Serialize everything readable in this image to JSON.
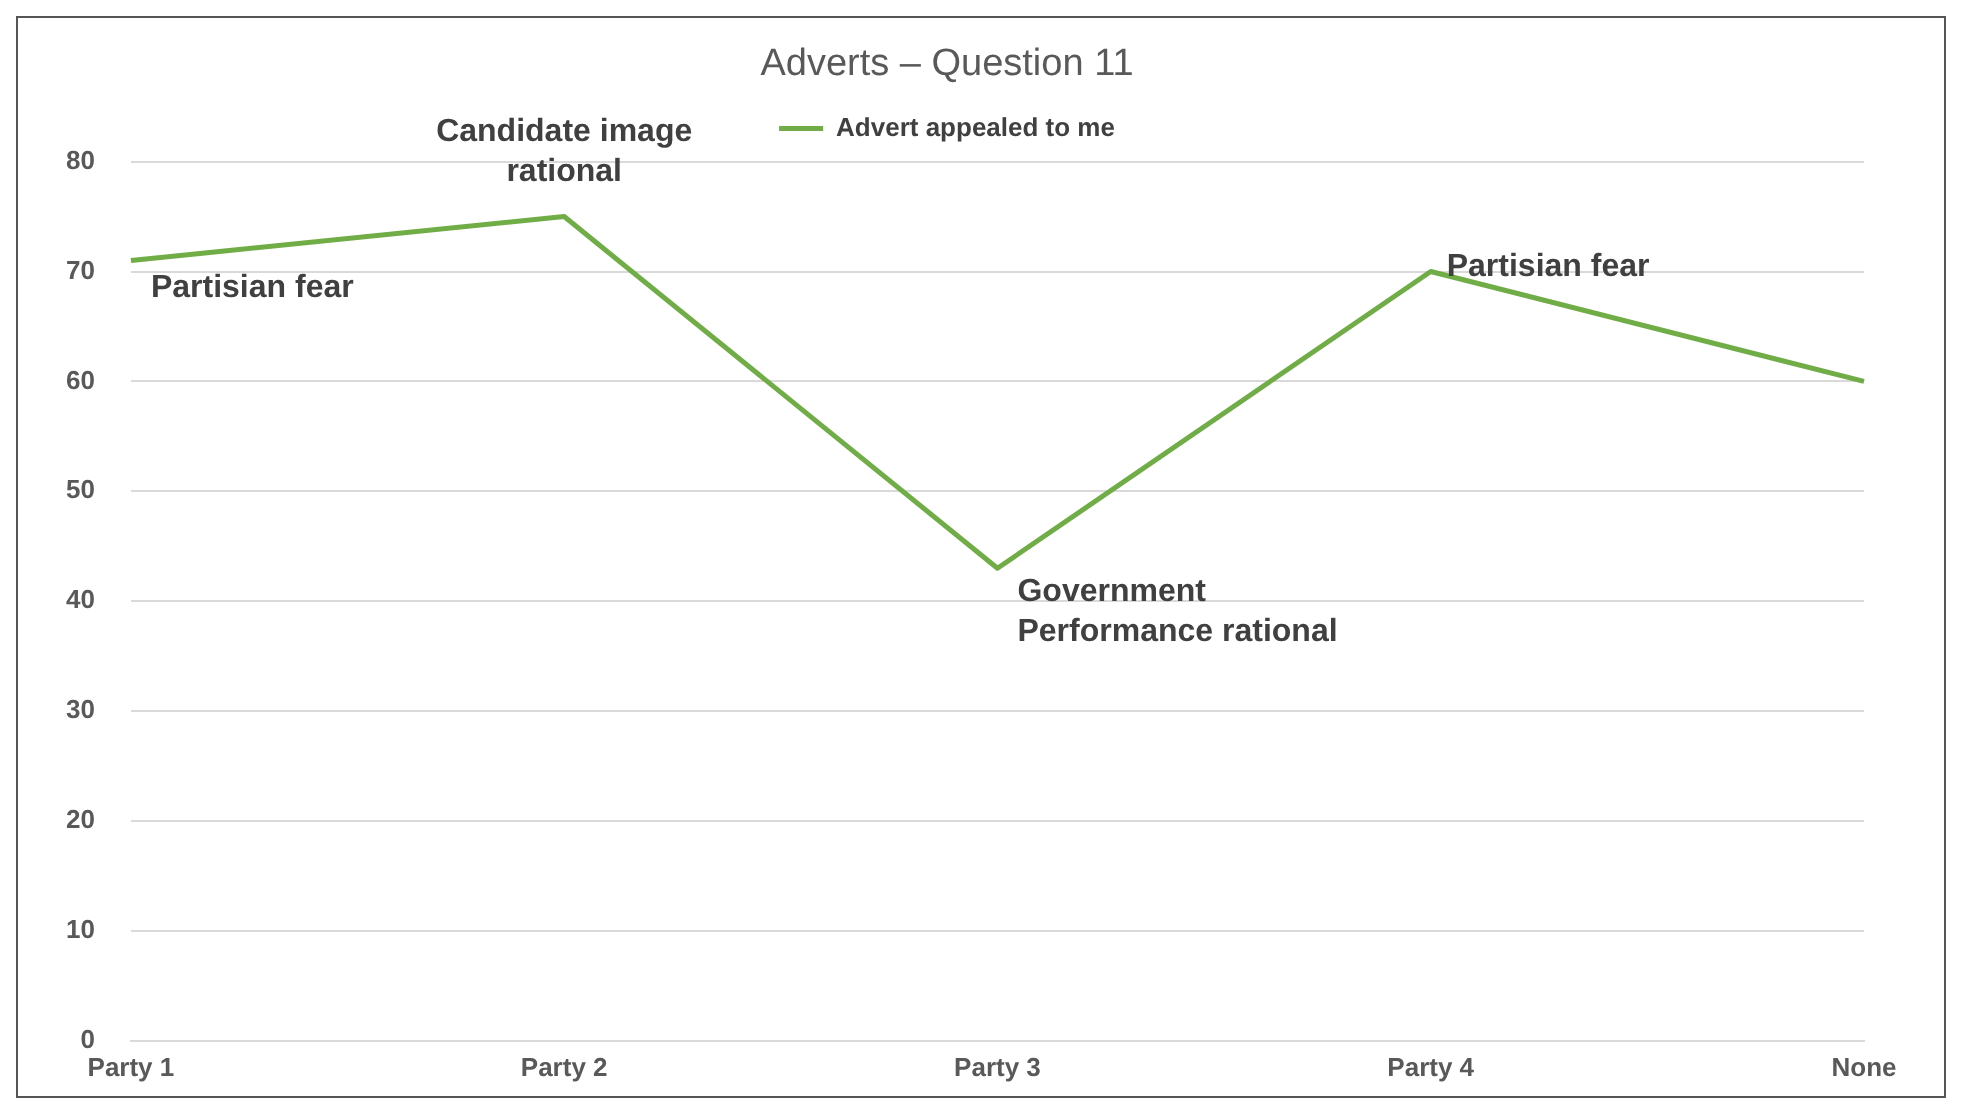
{
  "chart_data": {
    "type": "line",
    "title": "Adverts – Question 11",
    "categories": [
      "Party 1",
      "Party 2",
      "Party 3",
      "Party 4",
      "None"
    ],
    "series": [
      {
        "name": "Advert appealed to me",
        "color": "#70ad47",
        "values": [
          71,
          75,
          43,
          70,
          60
        ]
      }
    ],
    "ylim": [
      0,
      80
    ],
    "yticks": [
      0,
      10,
      20,
      30,
      40,
      50,
      60,
      70,
      80
    ],
    "grid": "y",
    "legend": "top",
    "marker": "none",
    "line_style": "solid",
    "annotations": [
      {
        "text": "Partisian fear",
        "x": "Party 1",
        "y": 71
      },
      {
        "text": "Candidate image\nrational",
        "x": "Party 2",
        "y": 75
      },
      {
        "text": "Government\nPerformance rational",
        "x": "Party 3",
        "y": 43
      },
      {
        "text": "Partisian fear",
        "x": "Party 4",
        "y": 70
      }
    ]
  }
}
